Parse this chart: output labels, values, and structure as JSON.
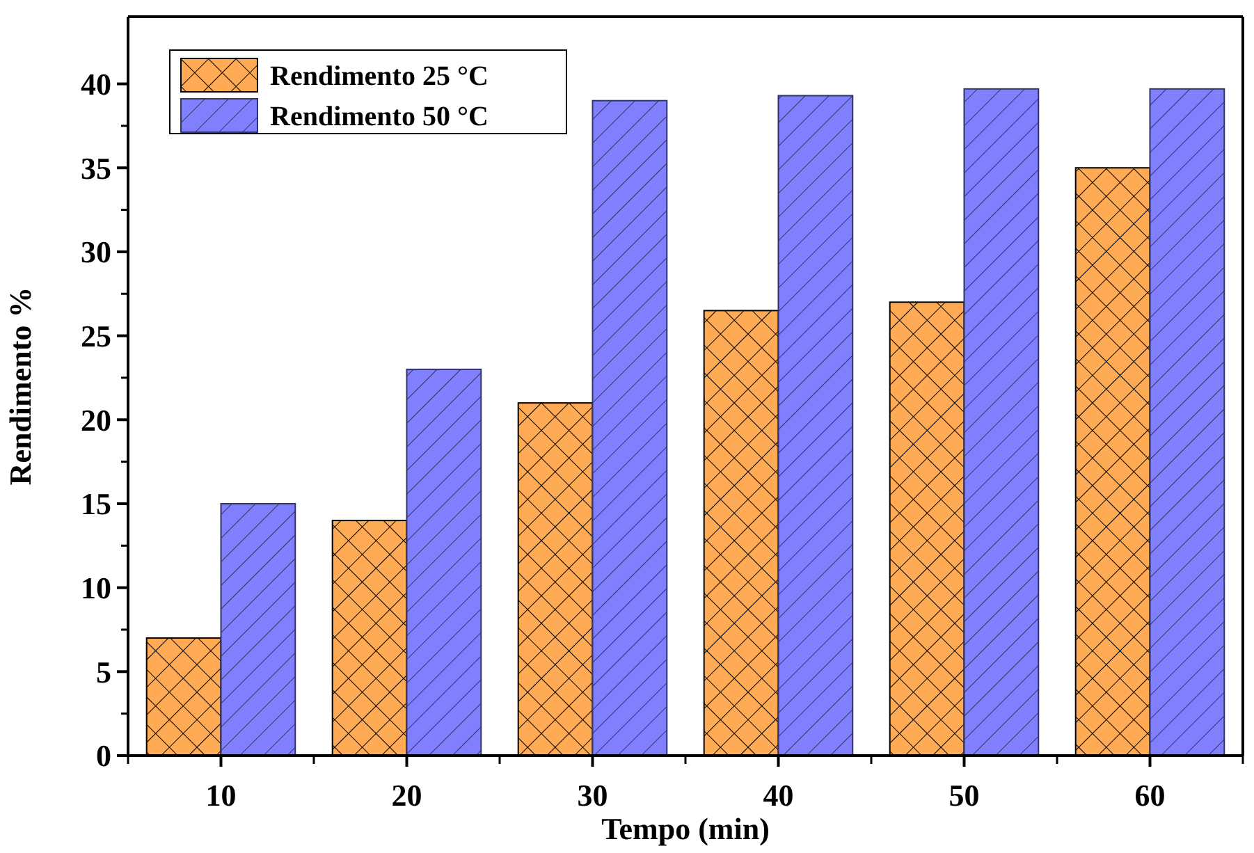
{
  "chart_data": {
    "type": "bar",
    "xlabel": "Tempo (min)",
    "ylabel": "Rendimento %",
    "categories": [
      "10",
      "20",
      "30",
      "40",
      "50",
      "60"
    ],
    "series": [
      {
        "name": "Rendimento 25 °C",
        "color": "#ffaa55",
        "values": [
          7,
          14,
          21,
          26.5,
          27,
          35
        ]
      },
      {
        "name": "Rendimento 50 °C",
        "color": "#8080ff",
        "values": [
          15,
          23,
          39,
          39.3,
          39.7,
          39.7
        ]
      }
    ],
    "ylim": [
      0,
      44
    ],
    "yticks": [
      0,
      5,
      10,
      15,
      20,
      25,
      30,
      35,
      40
    ],
    "grid": false,
    "legend": "top left"
  }
}
